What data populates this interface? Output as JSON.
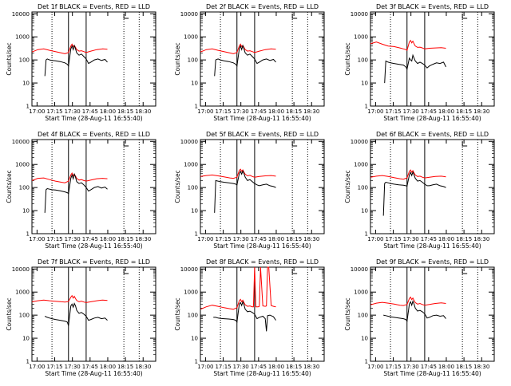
{
  "panels": [
    {
      "title": "Det 1f BLACK = Events, RED = LLD"
    },
    {
      "title": "Det 2f BLACK = Events, RED = LLD"
    },
    {
      "title": "Det 3f BLACK = Events, RED = LLD"
    },
    {
      "title": "Det 4f BLACK = Events, RED = LLD"
    },
    {
      "title": "Det 5f BLACK = Events, RED = LLD"
    },
    {
      "title": "Det 6f BLACK = Events, RED = LLD"
    },
    {
      "title": "Det 7f BLACK = Events, RED = LLD"
    },
    {
      "title": "Det 8f BLACK = Events, RED = LLD"
    },
    {
      "title": "Det 9f BLACK = Events, RED = LLD"
    }
  ],
  "colors": {
    "events": "#000000",
    "lld": "#ff0000",
    "axes": "#000000",
    "background": "#ffffff"
  },
  "chart_data": {
    "type": "line",
    "layout": "3x3 grid",
    "xlabel": "Start Time (28-Aug-11 16:55:40)",
    "ylabel": "Counts/sec",
    "x_tick_labels": [
      "17:00",
      "17:15",
      "17:30",
      "17:45",
      "18:00",
      "18:15",
      "18:30"
    ],
    "x_ticks_min": [
      4.33,
      19.33,
      34.33,
      49.33,
      64.33,
      79.33,
      94.33
    ],
    "xlim_min": [
      0,
      105
    ],
    "y_tick_labels": [
      "1",
      "10",
      "100",
      "1000",
      "10000"
    ],
    "y_ticks": [
      1,
      10,
      100,
      1000,
      10000
    ],
    "ylim": [
      1,
      12000
    ],
    "y_scale": "log",
    "grid": false,
    "dotted_vertical_lines_min": [
      17,
      78,
      91
    ],
    "solid_vertical_lines_min": [
      31,
      46
    ],
    "panels": [
      {
        "name": "Det 1f",
        "events": {
          "x": [
            11,
            12,
            13,
            15,
            17,
            20,
            24,
            28,
            30,
            31,
            33,
            34,
            35,
            36,
            37,
            38,
            40,
            42,
            44,
            46,
            48,
            50,
            53,
            56,
            59,
            62,
            64
          ],
          "y": [
            20,
            100,
            110,
            100,
            95,
            92,
            85,
            75,
            65,
            55,
            300,
            400,
            280,
            420,
            300,
            200,
            160,
            180,
            140,
            110,
            70,
            80,
            100,
            110,
            95,
            105,
            80
          ]
        },
        "lld": {
          "x": [
            0,
            5,
            10,
            15,
            20,
            25,
            28,
            30,
            31,
            33,
            34,
            35,
            36,
            37,
            38,
            40,
            42,
            44,
            46,
            50,
            55,
            60,
            64
          ],
          "y": [
            220,
            280,
            300,
            260,
            230,
            200,
            185,
            200,
            210,
            400,
            480,
            380,
            420,
            350,
            280,
            240,
            250,
            230,
            210,
            240,
            280,
            300,
            290
          ]
        }
      },
      {
        "name": "Det 2f",
        "events": {
          "x": [
            12,
            13,
            15,
            17,
            20,
            24,
            28,
            30,
            31,
            33,
            34,
            35,
            36,
            37,
            38,
            40,
            42,
            44,
            46,
            48,
            50,
            53,
            56,
            59,
            62,
            64
          ],
          "y": [
            20,
            100,
            110,
            100,
            92,
            85,
            75,
            65,
            55,
            300,
            400,
            280,
            420,
            300,
            200,
            160,
            180,
            140,
            110,
            70,
            80,
            100,
            110,
            95,
            105,
            80
          ]
        },
        "lld": {
          "x": [
            0,
            5,
            10,
            15,
            20,
            25,
            28,
            30,
            31,
            33,
            34,
            35,
            36,
            37,
            38,
            40,
            42,
            44,
            46,
            50,
            55,
            60,
            64
          ],
          "y": [
            220,
            280,
            300,
            260,
            230,
            200,
            185,
            200,
            210,
            400,
            480,
            380,
            420,
            350,
            280,
            240,
            250,
            230,
            210,
            240,
            280,
            300,
            290
          ]
        }
      },
      {
        "name": "Det 3f",
        "events": {
          "x": [
            12,
            13,
            15,
            17,
            20,
            24,
            28,
            30,
            31,
            33,
            34,
            35,
            36,
            37,
            38,
            40,
            42,
            44,
            46,
            48,
            50,
            53,
            56,
            59,
            62,
            64
          ],
          "y": [
            10,
            90,
            80,
            75,
            70,
            65,
            60,
            50,
            40,
            120,
            100,
            90,
            160,
            120,
            90,
            70,
            80,
            70,
            60,
            45,
            55,
            65,
            75,
            70,
            80,
            50
          ]
        },
        "lld": {
          "x": [
            0,
            5,
            10,
            15,
            20,
            25,
            28,
            30,
            31,
            33,
            34,
            35,
            36,
            37,
            38,
            40,
            42,
            44,
            46,
            50,
            55,
            60,
            64
          ],
          "y": [
            500,
            600,
            480,
            400,
            380,
            330,
            300,
            280,
            260,
            600,
            700,
            550,
            650,
            500,
            400,
            350,
            360,
            330,
            300,
            320,
            330,
            340,
            320
          ]
        }
      },
      {
        "name": "Det 4f",
        "events": {
          "x": [
            11,
            12,
            13,
            15,
            17,
            20,
            24,
            28,
            30,
            31,
            33,
            34,
            35,
            36,
            37,
            38,
            40,
            42,
            44,
            46,
            48,
            50,
            53,
            56,
            59,
            62,
            64
          ],
          "y": [
            8,
            80,
            90,
            85,
            80,
            78,
            72,
            65,
            60,
            55,
            250,
            350,
            240,
            380,
            280,
            180,
            150,
            160,
            130,
            100,
            70,
            80,
            100,
            110,
            95,
            105,
            85
          ]
        },
        "lld": {
          "x": [
            0,
            5,
            10,
            15,
            20,
            25,
            28,
            30,
            31,
            33,
            34,
            35,
            36,
            37,
            38,
            40,
            42,
            44,
            46,
            50,
            55,
            60,
            64
          ],
          "y": [
            200,
            250,
            260,
            220,
            190,
            170,
            160,
            180,
            190,
            350,
            420,
            320,
            380,
            310,
            250,
            210,
            220,
            200,
            190,
            210,
            240,
            250,
            240
          ]
        }
      },
      {
        "name": "Det 5f",
        "events": {
          "x": [
            12,
            13,
            15,
            17,
            20,
            24,
            28,
            30,
            31,
            33,
            34,
            35,
            36,
            37,
            38,
            40,
            42,
            44,
            46,
            48,
            50,
            53,
            56,
            59,
            62,
            64
          ],
          "y": [
            8,
            200,
            190,
            180,
            170,
            160,
            150,
            140,
            130,
            400,
            500,
            380,
            520,
            400,
            280,
            200,
            220,
            180,
            150,
            130,
            120,
            130,
            140,
            120,
            110,
            100
          ]
        },
        "lld": {
          "x": [
            0,
            5,
            10,
            15,
            20,
            25,
            28,
            30,
            31,
            33,
            34,
            35,
            36,
            37,
            38,
            40,
            42,
            44,
            46,
            50,
            55,
            60,
            64
          ],
          "y": [
            300,
            330,
            350,
            320,
            290,
            260,
            250,
            270,
            280,
            550,
            620,
            500,
            580,
            460,
            380,
            320,
            340,
            300,
            280,
            300,
            320,
            330,
            310
          ]
        }
      },
      {
        "name": "Det 6f",
        "events": {
          "x": [
            11,
            12,
            13,
            15,
            17,
            20,
            24,
            28,
            30,
            31,
            33,
            34,
            35,
            36,
            37,
            38,
            40,
            42,
            44,
            46,
            48,
            50,
            53,
            56,
            59,
            62,
            64
          ],
          "y": [
            6,
            150,
            170,
            160,
            150,
            140,
            130,
            125,
            120,
            115,
            350,
            450,
            330,
            470,
            350,
            250,
            190,
            200,
            170,
            140,
            120,
            120,
            130,
            140,
            120,
            110,
            100
          ]
        },
        "lld": {
          "x": [
            0,
            5,
            10,
            15,
            20,
            25,
            28,
            30,
            31,
            33,
            34,
            35,
            36,
            37,
            38,
            40,
            42,
            44,
            46,
            50,
            55,
            60,
            64
          ],
          "y": [
            280,
            310,
            330,
            300,
            270,
            240,
            230,
            250,
            260,
            500,
            580,
            460,
            540,
            430,
            350,
            300,
            310,
            280,
            260,
            280,
            300,
            310,
            290
          ]
        }
      },
      {
        "name": "Det 7f",
        "events": {
          "x": [
            11,
            13,
            15,
            17,
            20,
            24,
            28,
            30,
            31,
            33,
            34,
            35,
            36,
            37,
            38,
            40,
            42,
            44,
            46,
            48,
            50,
            53,
            56,
            59,
            62,
            64
          ],
          "y": [
            90,
            80,
            75,
            70,
            65,
            60,
            55,
            50,
            35,
            250,
            300,
            220,
            320,
            250,
            160,
            120,
            130,
            110,
            90,
            60,
            65,
            75,
            80,
            70,
            75,
            60
          ]
        },
        "lld": {
          "x": [
            0,
            5,
            10,
            15,
            20,
            25,
            28,
            30,
            31,
            33,
            34,
            35,
            36,
            37,
            38,
            40,
            42,
            44,
            46,
            50,
            55,
            60,
            64
          ],
          "y": [
            380,
            420,
            450,
            420,
            400,
            380,
            370,
            380,
            390,
            600,
            700,
            550,
            650,
            520,
            430,
            380,
            400,
            370,
            350,
            380,
            420,
            450,
            430
          ]
        }
      },
      {
        "name": "Det 8f",
        "events": {
          "x": [
            11,
            13,
            15,
            17,
            20,
            24,
            28,
            30,
            31,
            33,
            34,
            35,
            36,
            37,
            38,
            40,
            42,
            44,
            46,
            48,
            50,
            53,
            55,
            56,
            57,
            59,
            62,
            64
          ],
          "y": [
            80,
            80,
            75,
            72,
            70,
            68,
            65,
            60,
            50,
            300,
            350,
            260,
            380,
            280,
            180,
            140,
            150,
            130,
            110,
            70,
            80,
            90,
            70,
            20,
            95,
            100,
            85,
            60
          ]
        },
        "lld": {
          "x": [
            0,
            5,
            10,
            15,
            20,
            25,
            28,
            30,
            31,
            33,
            34,
            35,
            36,
            37,
            38,
            40,
            42,
            44,
            45,
            46,
            47,
            49,
            50,
            51,
            53,
            55,
            56,
            57,
            58,
            60,
            62,
            64
          ],
          "y": [
            180,
            230,
            270,
            240,
            210,
            190,
            180,
            200,
            210,
            420,
            480,
            380,
            440,
            350,
            280,
            240,
            250,
            230,
            230,
            12000,
            230,
            230,
            240,
            12000,
            250,
            240,
            250,
            12000,
            12000,
            260,
            240,
            230
          ]
        }
      },
      {
        "name": "Det 9f",
        "events": {
          "x": [
            11,
            13,
            15,
            17,
            20,
            24,
            28,
            30,
            31,
            33,
            34,
            35,
            36,
            37,
            38,
            40,
            42,
            44,
            46,
            48,
            50,
            53,
            56,
            59,
            62,
            64
          ],
          "y": [
            100,
            95,
            90,
            85,
            80,
            75,
            70,
            65,
            55,
            300,
            380,
            270,
            400,
            300,
            200,
            150,
            160,
            140,
            115,
            75,
            80,
            95,
            100,
            90,
            95,
            70
          ]
        },
        "lld": {
          "x": [
            0,
            5,
            10,
            15,
            20,
            25,
            28,
            30,
            31,
            33,
            34,
            35,
            36,
            37,
            38,
            40,
            42,
            44,
            46,
            50,
            55,
            60,
            64
          ],
          "y": [
            280,
            330,
            360,
            330,
            300,
            270,
            260,
            280,
            290,
            520,
            600,
            470,
            550,
            430,
            350,
            300,
            320,
            290,
            270,
            290,
            320,
            340,
            320
          ]
        }
      }
    ]
  }
}
